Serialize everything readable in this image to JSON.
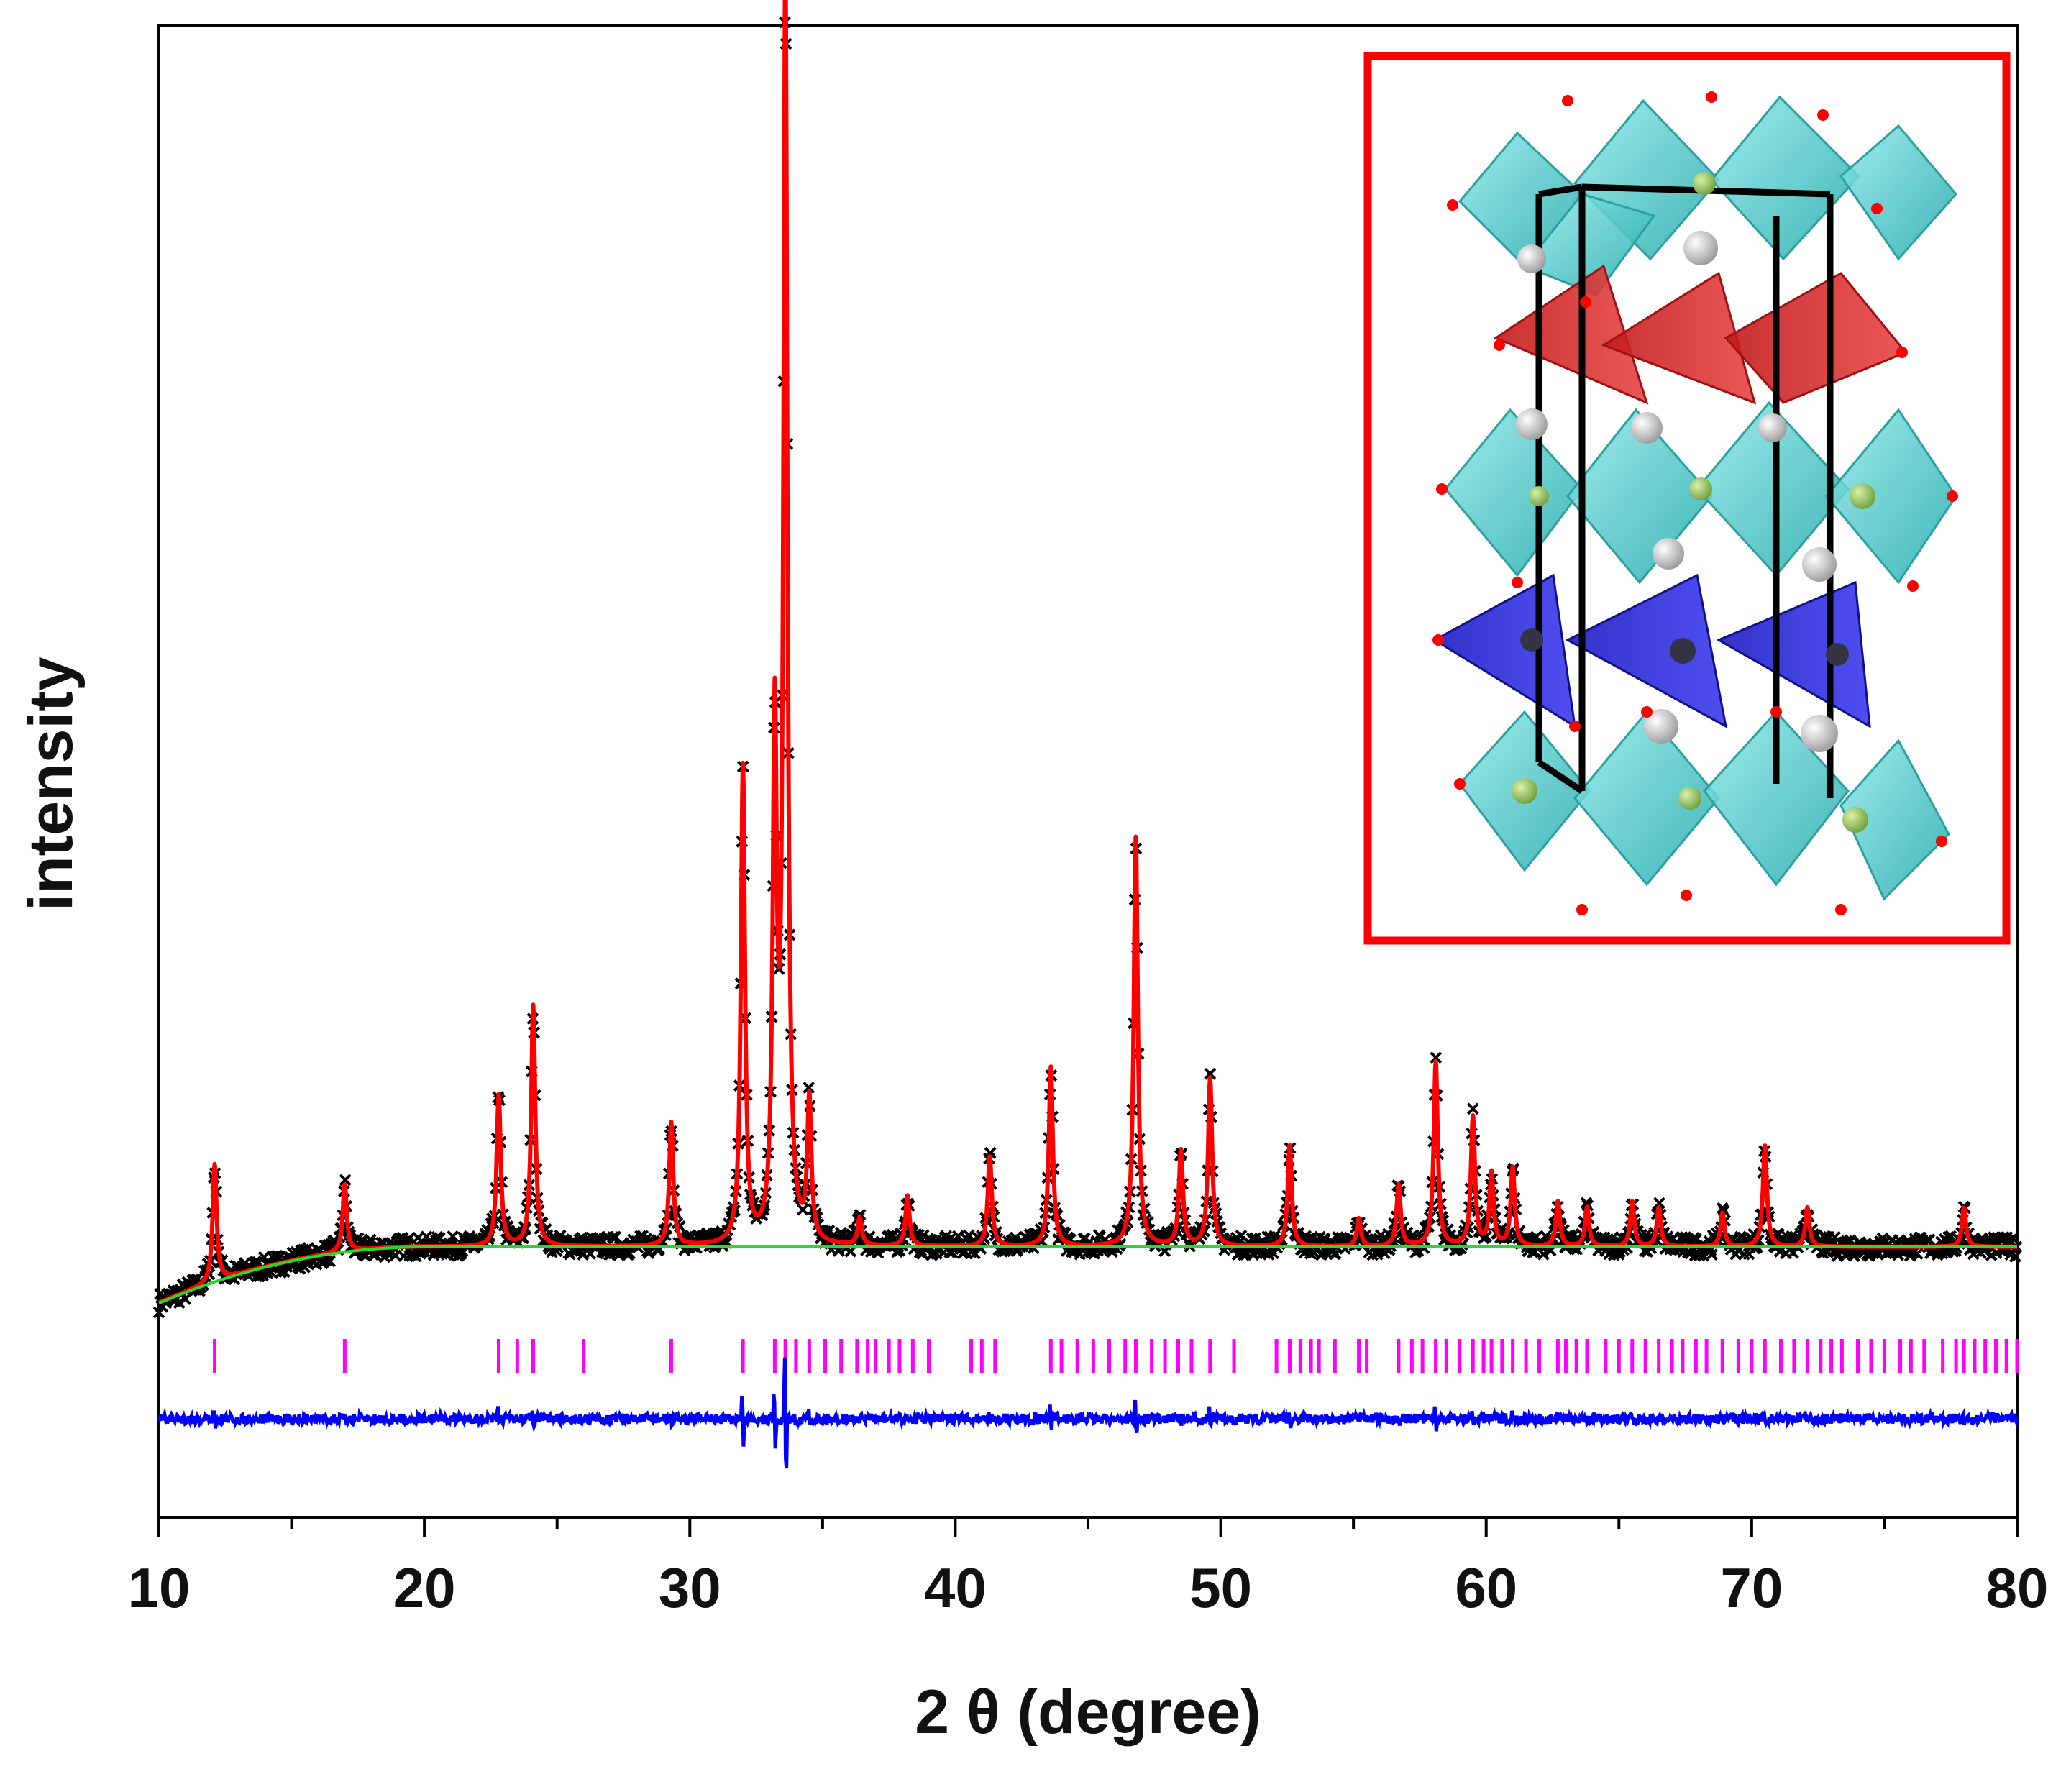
{
  "chart_data": {
    "type": "line",
    "title": "",
    "xlabel": "2 θ (degree)",
    "ylabel": "intensity",
    "xlim": [
      10,
      80
    ],
    "xticks": [
      "10",
      "20",
      "30",
      "40",
      "50",
      "60",
      "70",
      "80"
    ],
    "yticks_shown": false,
    "grid": false,
    "legend": "none",
    "background": {
      "start": 10,
      "start_level": 0.0,
      "plateau_start": 20,
      "plateau_level": 0.1
    },
    "peaks": [
      {
        "x": 12.1,
        "height": 0.21
      },
      {
        "x": 17.0,
        "height": 0.12
      },
      {
        "x": 22.8,
        "height": 0.27
      },
      {
        "x": 24.1,
        "height": 0.43
      },
      {
        "x": 29.3,
        "height": 0.22
      },
      {
        "x": 32.0,
        "height": 0.85
      },
      {
        "x": 33.2,
        "height": 0.9
      },
      {
        "x": 33.6,
        "height": 2.25
      },
      {
        "x": 34.5,
        "height": 0.25
      },
      {
        "x": 36.4,
        "height": 0.05
      },
      {
        "x": 38.2,
        "height": 0.09
      },
      {
        "x": 41.3,
        "height": 0.16
      },
      {
        "x": 43.6,
        "height": 0.32
      },
      {
        "x": 46.8,
        "height": 0.73
      },
      {
        "x": 48.5,
        "height": 0.17
      },
      {
        "x": 49.6,
        "height": 0.3
      },
      {
        "x": 52.6,
        "height": 0.18
      },
      {
        "x": 55.2,
        "height": 0.05
      },
      {
        "x": 56.7,
        "height": 0.11
      },
      {
        "x": 58.1,
        "height": 0.33
      },
      {
        "x": 59.5,
        "height": 0.23
      },
      {
        "x": 60.2,
        "height": 0.13
      },
      {
        "x": 61.0,
        "height": 0.14
      },
      {
        "x": 62.7,
        "height": 0.08
      },
      {
        "x": 63.8,
        "height": 0.07
      },
      {
        "x": 65.5,
        "height": 0.08
      },
      {
        "x": 66.5,
        "height": 0.07
      },
      {
        "x": 68.9,
        "height": 0.06
      },
      {
        "x": 70.5,
        "height": 0.18
      },
      {
        "x": 72.1,
        "height": 0.07
      },
      {
        "x": 78.0,
        "height": 0.07
      }
    ],
    "bragg_positions": [
      12.1,
      17.0,
      22.8,
      23.5,
      24.1,
      26.0,
      29.3,
      32.0,
      33.2,
      33.6,
      34.0,
      34.5,
      35.1,
      35.7,
      36.3,
      36.7,
      37.0,
      37.5,
      37.9,
      38.4,
      39.0,
      40.6,
      41.0,
      41.5,
      43.6,
      44.0,
      44.6,
      45.2,
      45.8,
      46.4,
      46.8,
      47.4,
      47.9,
      48.4,
      48.9,
      49.6,
      50.5,
      52.1,
      52.6,
      53.0,
      53.4,
      53.7,
      54.3,
      55.2,
      55.5,
      56.7,
      57.2,
      57.6,
      58.1,
      58.5,
      59.0,
      59.5,
      59.9,
      60.2,
      60.6,
      61.0,
      61.5,
      62.0,
      62.7,
      63.0,
      63.4,
      63.8,
      64.5,
      65.0,
      65.5,
      66.0,
      66.5,
      67.0,
      67.4,
      67.9,
      68.3,
      68.9,
      69.5,
      70.0,
      70.5,
      71.1,
      71.6,
      72.1,
      72.6,
      73.0,
      73.4,
      74.0,
      74.5,
      75.0,
      75.6,
      76.0,
      76.5,
      77.2,
      77.7,
      78.0,
      78.4,
      78.8,
      79.2,
      79.6,
      80.0
    ],
    "series": [
      {
        "name": "observed",
        "marker": "x",
        "color": "#000000"
      },
      {
        "name": "calculated",
        "color": "#ff0000"
      },
      {
        "name": "background",
        "color": "#22dd22"
      },
      {
        "name": "Bragg positions",
        "marker": "|",
        "color": "#ff00ff"
      },
      {
        "name": "difference",
        "color": "#0000ff"
      }
    ],
    "inset": {
      "type": "crystal-structure-image",
      "border_color": "#ff0000"
    }
  }
}
